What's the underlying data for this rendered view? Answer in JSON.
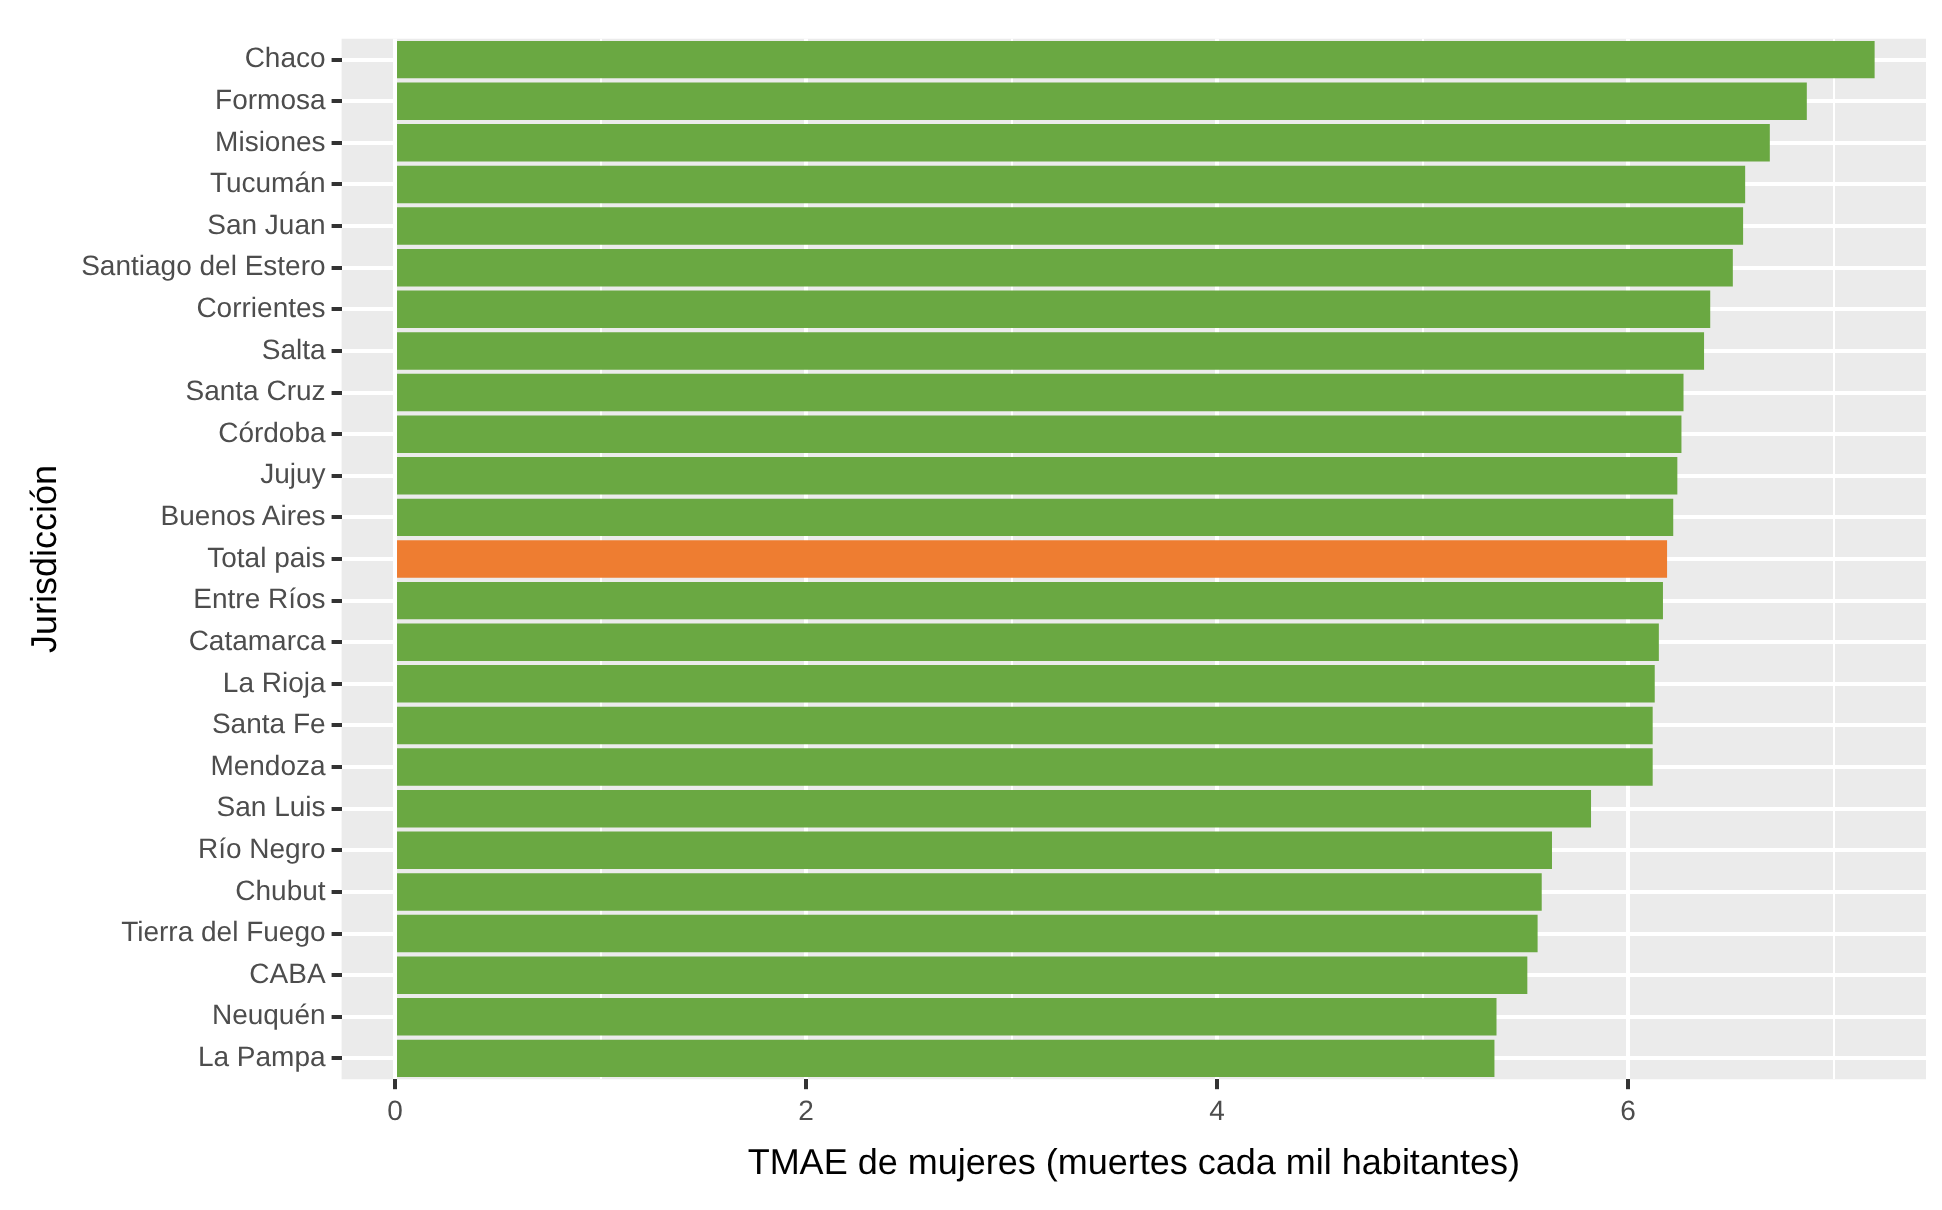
{
  "chart_data": {
    "type": "bar",
    "orientation": "horizontal",
    "xlabel": "TMAE de mujeres (muertes cada mil habitantes)",
    "ylabel": "Jurisdicción",
    "categories": [
      "Chaco",
      "Formosa",
      "Misiones",
      "Tucumán",
      "San Juan",
      "Santiago del Estero",
      "Corrientes",
      "Salta",
      "Santa Cruz",
      "Córdoba",
      "Jujuy",
      "Buenos Aires",
      "Total pais",
      "Entre Ríos",
      "Catamarca",
      "La Rioja",
      "Santa Fe",
      "Mendoza",
      "San Luis",
      "Río Negro",
      "Chubut",
      "Tierra del Fuego",
      "CABA",
      "Neuquén",
      "La Pampa"
    ],
    "values": [
      7.2,
      6.87,
      6.69,
      6.57,
      6.56,
      6.51,
      6.4,
      6.37,
      6.27,
      6.26,
      6.24,
      6.22,
      6.19,
      6.17,
      6.15,
      6.13,
      6.12,
      6.12,
      5.82,
      5.63,
      5.58,
      5.56,
      5.51,
      5.36,
      5.35
    ],
    "colors": [
      "#6aa842",
      "#6aa842",
      "#6aa842",
      "#6aa842",
      "#6aa842",
      "#6aa842",
      "#6aa842",
      "#6aa842",
      "#6aa842",
      "#6aa842",
      "#6aa842",
      "#6aa842",
      "#ee7d31",
      "#6aa842",
      "#6aa842",
      "#6aa842",
      "#6aa842",
      "#6aa842",
      "#6aa842",
      "#6aa842",
      "#6aa842",
      "#6aa842",
      "#6aa842",
      "#6aa842",
      "#6aa842"
    ],
    "xlim": [
      -0.26,
      7.45
    ],
    "xticks": [
      0,
      {
        "value": 1,
        "label": null
      },
      2,
      {
        "value": 3,
        "label": null
      },
      4,
      {
        "value": 5,
        "label": null
      },
      6,
      {
        "value": 7,
        "label": null
      }
    ],
    "grid": true,
    "legend": false
  }
}
